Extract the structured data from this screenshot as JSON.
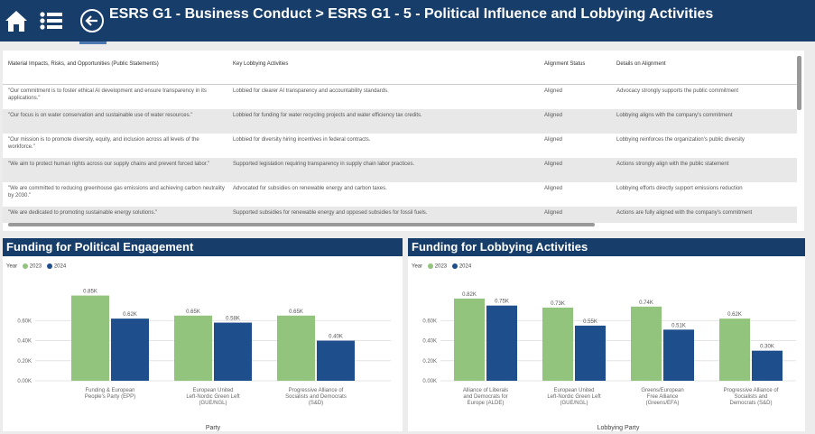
{
  "header": {
    "title": "ESRS G1 - Business Conduct > ESRS G1 - 5 - Political Influence and Lobbying Activities",
    "icons": [
      "home-icon",
      "list-icon",
      "back-arrow-icon"
    ],
    "bg_color": "#173e6b"
  },
  "table": {
    "columns": [
      "Material Impacts, Risks, and Opportunities (Public Statements)",
      "Key Lobbying Activities",
      "Alignment Status",
      "Details on Alignment"
    ],
    "rows": [
      [
        "\"Our commitment is to foster ethical AI development and ensure transparency in its applications.\"",
        "Lobbied for clearer AI transparency and accountability standards.",
        "Aligned",
        "Advocacy strongly supports the public commitment"
      ],
      [
        "\"Our focus is on water conservation and sustainable use of water resources.\"",
        "Lobbied for funding for water recycling projects and water efficiency tax credits.",
        "Aligned",
        "Lobbying aligns with the company's commitment"
      ],
      [
        "\"Our mission is to promote diversity, equity, and inclusion across all levels of the workforce.\"",
        "Lobbied for diversity hiring incentives in federal contracts.",
        "Aligned",
        "Lobbying reinforces the organization's public diversity"
      ],
      [
        "\"We aim to protect human rights across our supply chains and prevent forced labor.\"",
        "Supported legislation requiring transparency in supply chain labor practices.",
        "Aligned",
        "Actions strongly align with the public statement"
      ],
      [
        "\"We are committed to reducing greenhouse gas emissions and achieving carbon neutrality by 2030.\"",
        "Advocated for subsidies on renewable energy and carbon taxes.",
        "Aligned",
        "Lobbying efforts directly support emissions reduction"
      ],
      [
        "\"We are dedicated to promoting sustainable energy solutions.\"",
        "Supported subsidies for renewable energy and opposed subsidies for fossil fuels.",
        "Aligned",
        "Actions are fully aligned with the company's commitment"
      ]
    ]
  },
  "charts": [
    {
      "panel_title": "Funding for Political Engagement",
      "legend_title": "Year",
      "chart_data": {
        "type": "bar",
        "categories": [
          [
            "Funding & European",
            "People's Party (EPP)"
          ],
          [
            "European United",
            "Left-Nordic Green Left",
            "(GUE/NGL)"
          ],
          [
            "Progressive Alliance of",
            "Socialists and Democrats",
            "(S&D)"
          ]
        ],
        "series": [
          {
            "name": "2023",
            "color": "#93c47d",
            "values": [
              0.85,
              0.65,
              0.65
            ]
          },
          {
            "name": "2024",
            "color": "#1f4e8c",
            "values": [
              0.62,
              0.58,
              0.4
            ]
          }
        ],
        "data_labels": [
          [
            "0.85K",
            "0.65K",
            "0.65K"
          ],
          [
            "0.62K",
            "0.58K",
            "0.40K"
          ]
        ],
        "yticks": [
          "0.00K",
          "0.20K",
          "0.40K",
          "0.60K"
        ],
        "ylim": [
          0,
          0.9
        ],
        "xlabel": "Party"
      }
    },
    {
      "panel_title": "Funding for Lobbying Activities",
      "legend_title": "Year",
      "chart_data": {
        "type": "bar",
        "categories": [
          [
            "Alliance of Liberals",
            "and Democrats for",
            "Europe (ALDE)"
          ],
          [
            "European United",
            "Left-Nordic Green Left",
            "(GUE/NGL)"
          ],
          [
            "Greens/European",
            "Free Alliance",
            "(Greens/EFA)"
          ],
          [
            "Progressive Alliance of",
            "Socialists and",
            "Democrats (S&D)"
          ]
        ],
        "series": [
          {
            "name": "2023",
            "color": "#93c47d",
            "values": [
              0.82,
              0.73,
              0.74,
              0.62
            ]
          },
          {
            "name": "2024",
            "color": "#1f4e8c",
            "values": [
              0.75,
              0.55,
              0.51,
              0.3
            ]
          }
        ],
        "data_labels": [
          [
            "0.82K",
            "0.73K",
            "0.74K",
            "0.62K"
          ],
          [
            "0.75K",
            "0.55K",
            "0.51K",
            "0.30K"
          ]
        ],
        "yticks": [
          "0.00K",
          "0.20K",
          "0.40K",
          "0.60K"
        ],
        "ylim": [
          0,
          0.9
        ],
        "xlabel": "Lobbying Party"
      }
    }
  ]
}
